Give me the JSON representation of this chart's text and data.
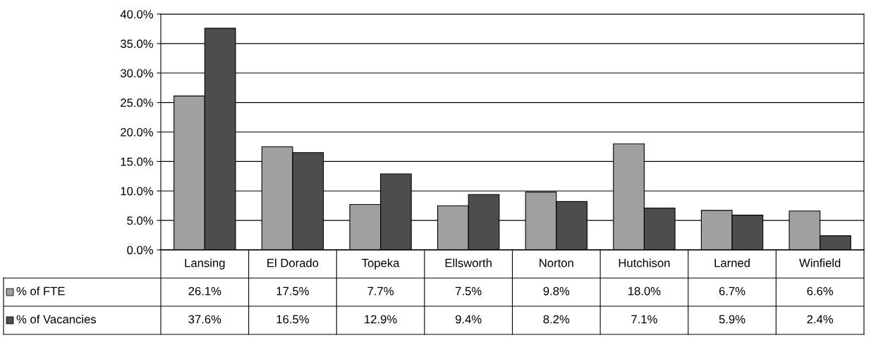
{
  "chart_data": {
    "type": "bar",
    "categories": [
      "Lansing",
      "El Dorado",
      "Topeka",
      "Ellsworth",
      "Norton",
      "Hutchison",
      "Larned",
      "Winfield"
    ],
    "series": [
      {
        "name": "% of FTE",
        "color": "#a0a0a0",
        "values": [
          26.1,
          17.5,
          7.7,
          7.5,
          9.8,
          18.0,
          6.7,
          6.6
        ],
        "value_labels": [
          "26.1%",
          "17.5%",
          "7.7%",
          "7.5%",
          "9.8%",
          "18.0%",
          "6.7%",
          "6.6%"
        ]
      },
      {
        "name": "% of Vacancies",
        "color": "#4d4d4d",
        "values": [
          37.6,
          16.5,
          12.9,
          9.4,
          8.2,
          7.1,
          5.9,
          2.4
        ],
        "value_labels": [
          "37.6%",
          "16.5%",
          "12.9%",
          "9.4%",
          "8.2%",
          "7.1%",
          "5.9%",
          "2.4%"
        ]
      }
    ],
    "ylim": [
      0,
      40
    ],
    "yticks": [
      {
        "value": 0,
        "label": "0.0%"
      },
      {
        "value": 5,
        "label": "5.0%"
      },
      {
        "value": 10,
        "label": "10.0%"
      },
      {
        "value": 15,
        "label": "15.0%"
      },
      {
        "value": 20,
        "label": "20.0%"
      },
      {
        "value": 25,
        "label": "25.0%"
      },
      {
        "value": 30,
        "label": "30.0%"
      },
      {
        "value": 35,
        "label": "35.0%"
      },
      {
        "value": 40,
        "label": "40.0%"
      }
    ],
    "grid": "y",
    "legend": "bottom"
  }
}
